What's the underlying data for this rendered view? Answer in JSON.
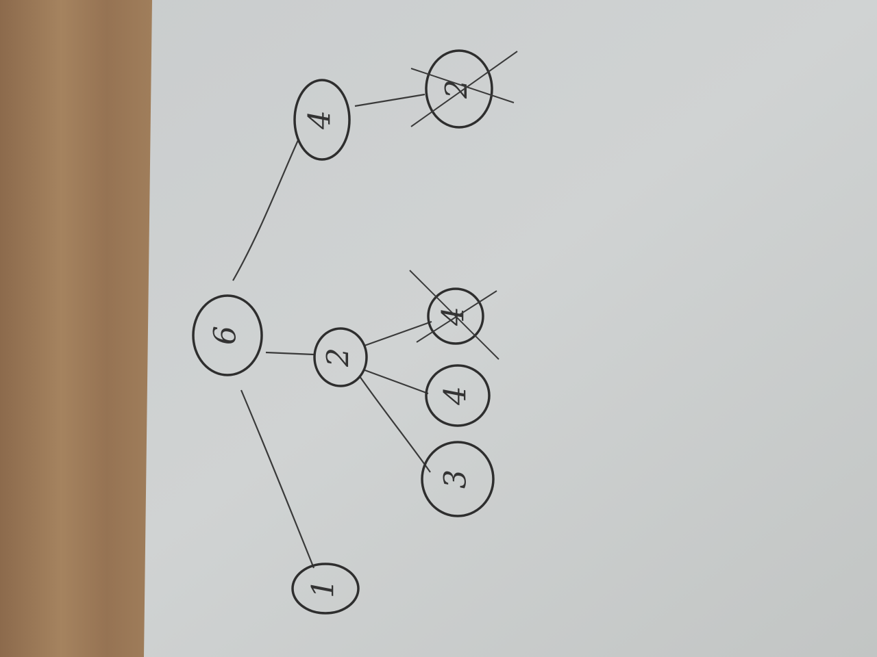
{
  "nodes": [
    {
      "label": "6"
    },
    {
      "label": "4"
    },
    {
      "label": "2"
    },
    {
      "label": "2"
    },
    {
      "label": "4"
    },
    {
      "label": "4"
    },
    {
      "label": "3"
    },
    {
      "label": "1"
    }
  ]
}
